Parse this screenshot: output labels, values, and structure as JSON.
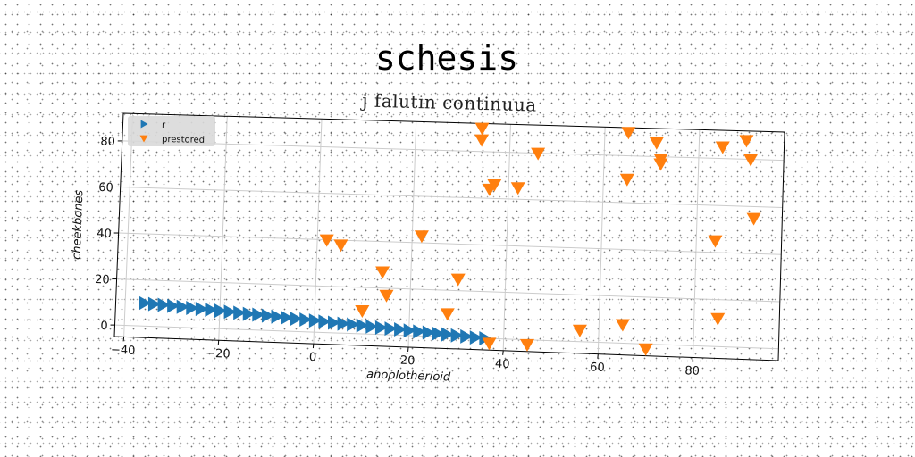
{
  "chart_data": {
    "type": "scatter",
    "title": "schesis",
    "subtitle": "j falutin continuua",
    "xlabel": "anoplotherioid",
    "ylabel": "cheekbones",
    "xlim": [
      -42,
      98
    ],
    "ylim": [
      -5,
      92
    ],
    "xticks": [
      -40,
      -20,
      0,
      20,
      40,
      60,
      80
    ],
    "yticks": [
      0,
      20,
      40,
      60,
      80
    ],
    "grid": true,
    "legend_position": "top-left",
    "series": [
      {
        "name": "r",
        "marker": "triangle-right",
        "color": "#1f77b4",
        "x": [
          -36,
          -34,
          -32,
          -30,
          -28,
          -26,
          -24,
          -22,
          -20,
          -18,
          -16,
          -14,
          -12,
          -10,
          -8,
          -6,
          -4,
          -2,
          0,
          2,
          4,
          6,
          8,
          10,
          12,
          14,
          16,
          18,
          20,
          22,
          24,
          26,
          28,
          30,
          32,
          34,
          36
        ],
        "y": [
          10,
          9.7,
          9.5,
          9.2,
          8.9,
          8.6,
          8.3,
          8.1,
          7.8,
          7.5,
          7.2,
          6.9,
          6.7,
          6.4,
          6.1,
          5.8,
          5.5,
          5.3,
          5,
          4.7,
          4.4,
          4.1,
          3.9,
          3.6,
          3.3,
          3,
          2.7,
          2.5,
          2.2,
          1.9,
          1.6,
          1.3,
          1.1,
          0.8,
          0.5,
          0.2,
          0
        ]
      },
      {
        "name": "prestored",
        "marker": "triangle-down",
        "color": "#ff7f0e",
        "x": [
          34,
          34,
          36,
          37,
          42,
          46,
          65,
          65,
          71,
          72,
          72,
          84,
          85,
          90,
          91,
          92,
          2,
          5,
          10,
          14,
          15,
          22,
          28,
          30,
          37,
          45,
          56,
          65,
          70,
          85
        ],
        "y": [
          90,
          85,
          64,
          66,
          65,
          80,
          90,
          70,
          86,
          79,
          77,
          45,
          85,
          88,
          80,
          55,
          40,
          38,
          10,
          27,
          17,
          43,
          10,
          25,
          -2,
          -2,
          5,
          8,
          -2,
          12
        ]
      }
    ]
  },
  "colors": {
    "series_r": "#1f77b4",
    "series_prestored": "#ff7f0e",
    "grid": "#cccccc",
    "frame": "#000000"
  }
}
